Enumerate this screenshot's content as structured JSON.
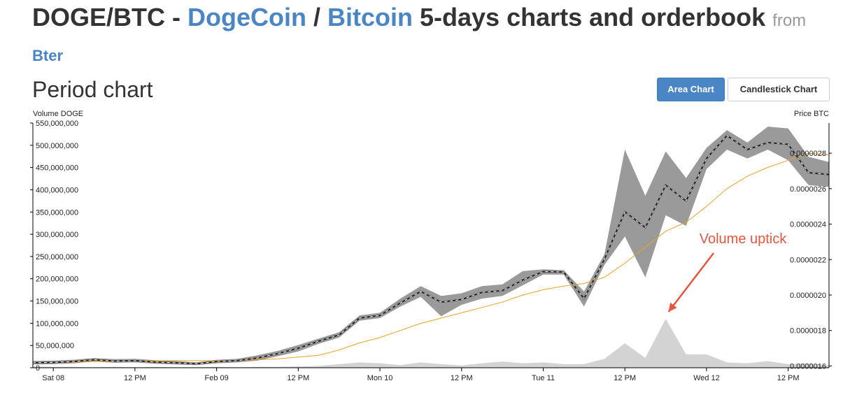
{
  "header": {
    "pair": "DOGE/BTC",
    "dash": " - ",
    "coin1": "DogeCoin",
    "slash": " / ",
    "coin2": "Bitcoin",
    "rest": " 5-days charts and orderbook ",
    "from": "from",
    "source": "Bter"
  },
  "section_title": "Period chart",
  "buttons": {
    "area": "Area Chart",
    "candlestick": "Candlestick Chart"
  },
  "chart_data": {
    "type": "area",
    "left_axis": {
      "label": "Volume DOGE",
      "range": [
        0,
        550000000
      ],
      "ticks": [
        0,
        50000000,
        100000000,
        150000000,
        200000000,
        250000000,
        300000000,
        350000000,
        400000000,
        450000000,
        500000000,
        550000000
      ],
      "tick_labels": [
        "0",
        "50,000,000",
        "100,000,000",
        "150,000,000",
        "200,000,000",
        "250,000,000",
        "300,000,000",
        "350,000,000",
        "400,000,000",
        "450,000,000",
        "500,000,000",
        "550,000,000"
      ]
    },
    "right_axis": {
      "label": "Price BTC",
      "range": [
        1.59e-06,
        2.97e-06
      ],
      "ticks": [
        1.6e-06,
        1.8e-06,
        2e-06,
        2.2e-06,
        2.4e-06,
        2.6e-06,
        2.8e-06
      ],
      "tick_labels": [
        "0.0000016",
        "0.0000018",
        "0.0000020",
        "0.0000022",
        "0.0000024",
        "0.0000026",
        "0.0000028"
      ]
    },
    "x_axis": {
      "range": [
        "2014-02-07 21:00",
        "2014-02-12 18:00"
      ],
      "ticks": [
        "2014-02-08 00:00",
        "2014-02-08 12:00",
        "2014-02-09 00:00",
        "2014-02-09 12:00",
        "2014-02-10 00:00",
        "2014-02-10 12:00",
        "2014-02-11 00:00",
        "2014-02-11 12:00",
        "2014-02-12 00:00",
        "2014-02-12 12:00"
      ],
      "tick_labels": [
        "Sat 08",
        "12 PM",
        "Feb 09",
        "12 PM",
        "Mon 10",
        "12 PM",
        "Tue 11",
        "12 PM",
        "Wed 12",
        "12 PM"
      ]
    },
    "x": [
      "2014-02-07 21:00",
      "2014-02-08 00:00",
      "2014-02-08 03:00",
      "2014-02-08 06:00",
      "2014-02-08 09:00",
      "2014-02-08 12:00",
      "2014-02-08 15:00",
      "2014-02-08 18:00",
      "2014-02-08 21:00",
      "2014-02-09 00:00",
      "2014-02-09 03:00",
      "2014-02-09 06:00",
      "2014-02-09 09:00",
      "2014-02-09 12:00",
      "2014-02-09 15:00",
      "2014-02-09 18:00",
      "2014-02-09 21:00",
      "2014-02-10 00:00",
      "2014-02-10 03:00",
      "2014-02-10 06:00",
      "2014-02-10 09:00",
      "2014-02-10 12:00",
      "2014-02-10 15:00",
      "2014-02-10 18:00",
      "2014-02-10 21:00",
      "2014-02-11 00:00",
      "2014-02-11 03:00",
      "2014-02-11 06:00",
      "2014-02-11 09:00",
      "2014-02-11 12:00",
      "2014-02-11 15:00",
      "2014-02-11 18:00",
      "2014-02-11 21:00",
      "2014-02-12 00:00",
      "2014-02-12 03:00",
      "2014-02-12 06:00",
      "2014-02-12 09:00",
      "2014-02-12 12:00",
      "2014-02-12 15:00",
      "2014-02-12 18:00"
    ],
    "series": [
      {
        "kind": "price",
        "color": "#222222",
        "values": [
          1.618e-06,
          1.62e-06,
          1.625e-06,
          1.635e-06,
          1.628e-06,
          1.63e-06,
          1.622e-06,
          1.618e-06,
          1.612e-06,
          1.625e-06,
          1.63e-06,
          1.645e-06,
          1.67e-06,
          1.7e-06,
          1.74e-06,
          1.775e-06,
          1.87e-06,
          1.885e-06,
          1.955e-06,
          2.02e-06,
          1.96e-06,
          1.975e-06,
          2.015e-06,
          2.025e-06,
          2.085e-06,
          2.132e-06,
          2.13e-06,
          1.98e-06,
          2.202e-06,
          2.47e-06,
          2.38e-06,
          2.62e-06,
          2.53e-06,
          2.77e-06,
          2.9e-06,
          2.82e-06,
          2.86e-06,
          2.85e-06,
          2.69e-06,
          2.68e-06
        ]
      },
      {
        "kind": "price-range",
        "color": "#999999",
        "high": [
          1.628e-06,
          1.63e-06,
          1.635e-06,
          1.645e-06,
          1.638e-06,
          1.64e-06,
          1.632e-06,
          1.628e-06,
          1.62e-06,
          1.635e-06,
          1.64e-06,
          1.66e-06,
          1.685e-06,
          1.718e-06,
          1.755e-06,
          1.79e-06,
          1.885e-06,
          1.9e-06,
          1.98e-06,
          2.05e-06,
          1.995e-06,
          2.01e-06,
          2.05e-06,
          2.06e-06,
          2.135e-06,
          2.145e-06,
          2.14e-06,
          2.02e-06,
          2.23e-06,
          2.82e-06,
          2.56e-06,
          2.81e-06,
          2.66e-06,
          2.83e-06,
          2.93e-06,
          2.86e-06,
          2.95e-06,
          2.94e-06,
          2.78e-06,
          2.75e-06
        ]
      },
      {
        "kind": "price-range",
        "color": "#999999",
        "low": [
          1.608e-06,
          1.61e-06,
          1.615e-06,
          1.625e-06,
          1.618e-06,
          1.62e-06,
          1.612e-06,
          1.608e-06,
          1.605e-06,
          1.615e-06,
          1.62e-06,
          1.63e-06,
          1.655e-06,
          1.682e-06,
          1.725e-06,
          1.76e-06,
          1.855e-06,
          1.87e-06,
          1.935e-06,
          1.99e-06,
          1.88e-06,
          1.945e-06,
          1.98e-06,
          1.995e-06,
          2.055e-06,
          2.115e-06,
          2.115e-06,
          1.935e-06,
          2.17e-06,
          2.33e-06,
          2.1e-06,
          2.45e-06,
          2.39e-06,
          2.71e-06,
          2.82e-06,
          2.77e-06,
          2.82e-06,
          2.76e-06,
          2.62e-06,
          2.61e-06
        ]
      },
      {
        "kind": "moving-average",
        "color": "#f0a020",
        "values": [
          1.62e-06,
          1.62e-06,
          1.62e-06,
          1.625e-06,
          1.625e-06,
          1.63e-06,
          1.63e-06,
          1.63e-06,
          1.63e-06,
          1.63e-06,
          1.63e-06,
          1.635e-06,
          1.64e-06,
          1.65e-06,
          1.66e-06,
          1.69e-06,
          1.73e-06,
          1.76e-06,
          1.8e-06,
          1.84e-06,
          1.87e-06,
          1.9e-06,
          1.93e-06,
          1.96e-06,
          2e-06,
          2.03e-06,
          2.05e-06,
          2.065e-06,
          2.1e-06,
          2.18e-06,
          2.27e-06,
          2.36e-06,
          2.41e-06,
          2.5e-06,
          2.6e-06,
          2.67e-06,
          2.72e-06,
          2.76e-06,
          2.8e-06,
          2.79e-06
        ]
      },
      {
        "kind": "volume",
        "color": "#d3d3d3",
        "values": [
          3000000,
          2000000,
          2000000,
          1000000,
          2000000,
          1000000,
          2000000,
          1000000,
          1000000,
          2000000,
          1000000,
          2000000,
          2000000,
          3000000,
          4000000,
          8000000,
          12000000,
          10000000,
          6000000,
          12000000,
          8000000,
          5000000,
          10000000,
          14000000,
          10000000,
          12000000,
          8000000,
          8000000,
          20000000,
          55000000,
          22000000,
          110000000,
          30000000,
          30000000,
          12000000,
          10000000,
          15000000,
          8000000,
          10000000,
          5000000
        ]
      }
    ],
    "annotation": {
      "text": "Volume uptick",
      "color": "#e8553e"
    }
  }
}
